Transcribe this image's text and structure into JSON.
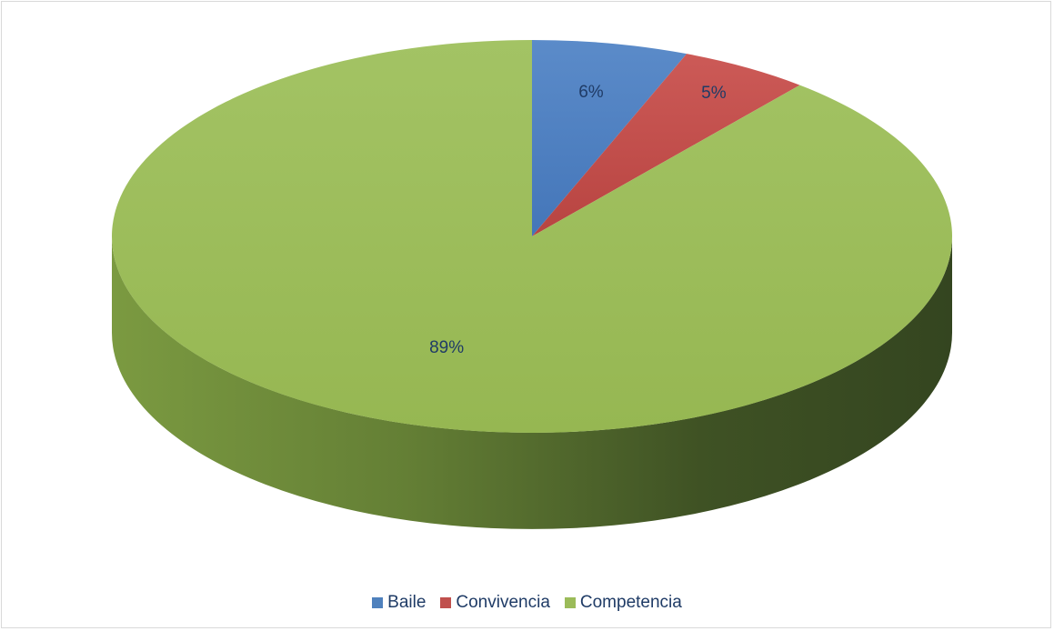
{
  "chart_data": {
    "type": "pie",
    "title": "",
    "categories": [
      "Baile",
      "Convivencia",
      "Competencia"
    ],
    "values": [
      6,
      5,
      89
    ],
    "labels": [
      "6%",
      "5%",
      "89%"
    ],
    "colors": [
      "#4f81bd",
      "#c0504d",
      "#9bbb59"
    ],
    "legend_position": "bottom",
    "three_d": true
  }
}
